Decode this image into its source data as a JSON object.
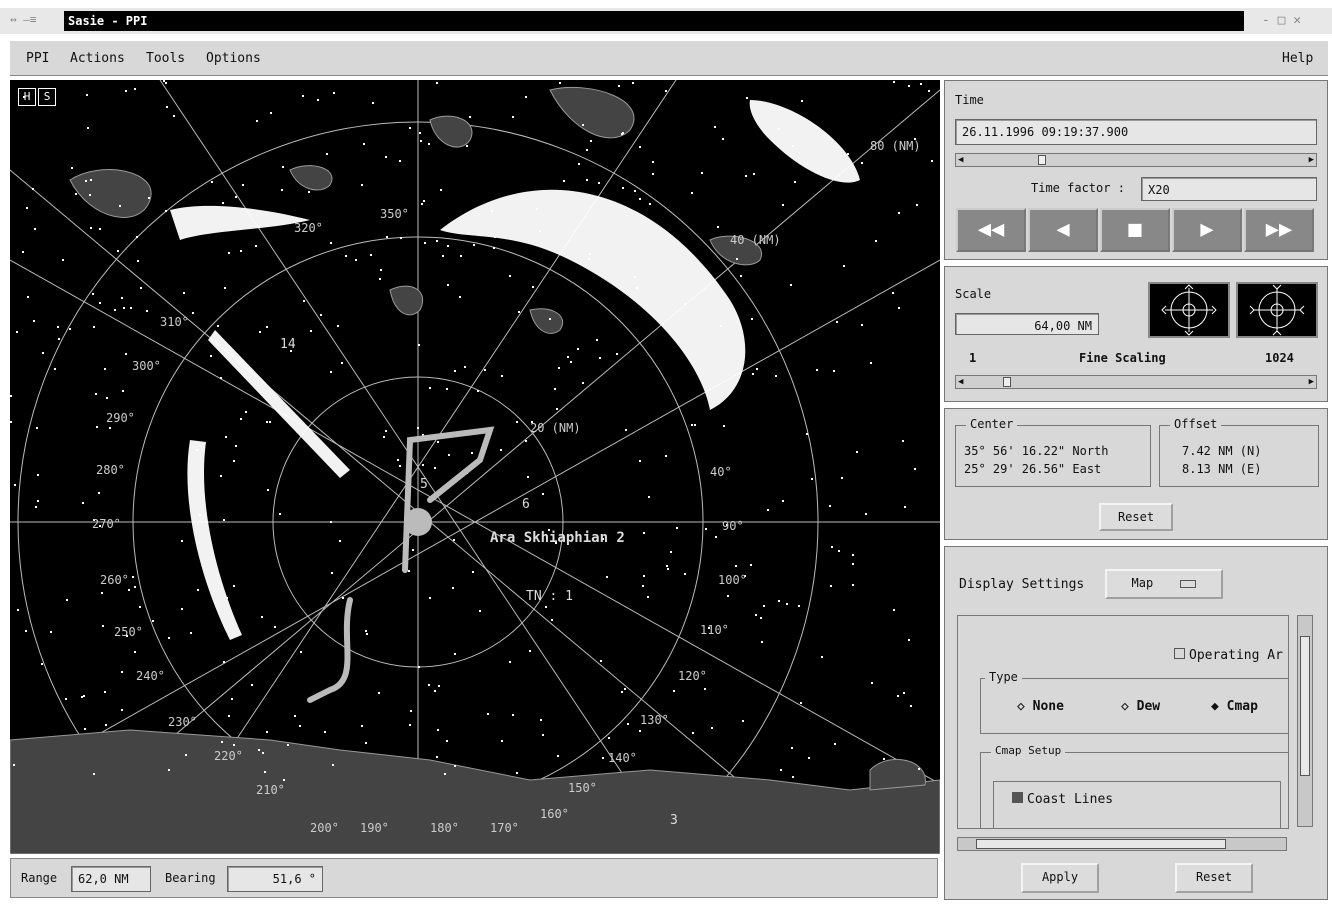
{
  "window": {
    "title": "Sasie - PPI",
    "left_controls": "↔ —≡",
    "right_controls": "- □ ✕"
  },
  "menu": {
    "ppi": "PPI",
    "actions": "Actions",
    "tools": "Tools",
    "options": "Options",
    "help": "Help"
  },
  "ppi": {
    "mode_badges": [
      "H",
      "S"
    ],
    "range_labels": [
      "80 (NM)",
      "40 (NM)",
      "20 (NM)"
    ],
    "bearing_labels": [
      "350°",
      "320°",
      "310°",
      "300°",
      "290°",
      "280°",
      "270°",
      "260°",
      "250°",
      "240°",
      "230°",
      "220°",
      "210°",
      "200°",
      "190°",
      "180°",
      "170°",
      "160°",
      "150°",
      "140°",
      "130°",
      "120°",
      "110°",
      "100°",
      "90°",
      "40°"
    ],
    "track_labels": [
      "14",
      "6",
      "5",
      "3",
      "TN : 1"
    ],
    "target_label": "Ara Skhiaphian 2"
  },
  "status": {
    "range_label": "Range",
    "range_value": "62,0 NM",
    "bearing_label": "Bearing",
    "bearing_value": "51,6 °"
  },
  "time_panel": {
    "title": "Time",
    "datetime": "26.11.1996 09:19:37.900",
    "slider_pos": 0.21,
    "factor_label": "Time factor :",
    "factor_value": "X20",
    "buttons": [
      "◀◀",
      "◀",
      "■",
      "▶",
      "▶▶"
    ]
  },
  "scale_panel": {
    "title": "Scale",
    "value": "64,00 NM",
    "min": "1",
    "fine_label": "Fine Scaling",
    "max": "1024",
    "slider_pos": 0.1
  },
  "position_panel": {
    "center_title": "Center",
    "center_lat": "35° 56' 16.22\" North",
    "center_lon": "25° 29' 26.56\" East",
    "offset_title": "Offset",
    "offset_n": "7.42 NM (N)",
    "offset_e": "8.13 NM (E)",
    "reset": "Reset"
  },
  "display_panel": {
    "label": "Display Settings",
    "mode": "Map",
    "operating_area": "Operating Ar",
    "type_title": "Type",
    "type_options": [
      "None",
      "Dew",
      "Cmap"
    ],
    "type_selected": "Cmap",
    "cmap_setup_title": "Cmap Setup",
    "coast_lines": "Coast Lines",
    "apply": "Apply",
    "reset": "Reset"
  }
}
